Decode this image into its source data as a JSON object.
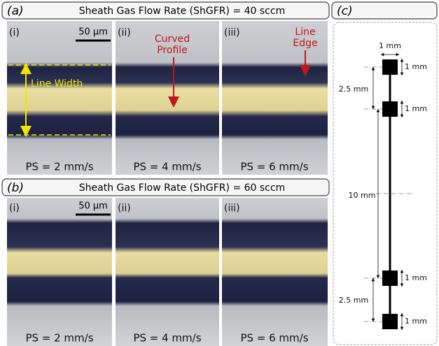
{
  "panel_a": {
    "label": "(a)",
    "title": "Sheath Gas Flow Rate (ShGFR) = 40 sccm",
    "scale_bar": "50 µm",
    "images": [
      {
        "label": "(i)",
        "caption": "PS = 2 mm/s"
      },
      {
        "label": "(ii)",
        "caption": "PS = 4 mm/s"
      },
      {
        "label": "(iii)",
        "caption": "PS = 6 mm/s"
      }
    ],
    "annotations": {
      "line_width": "Line Width",
      "curved_profile": [
        "Curved",
        "Profile"
      ],
      "line_edge": [
        "Line",
        "Edge"
      ]
    }
  },
  "panel_b": {
    "label": "(b)",
    "title": "Sheath Gas Flow Rate (ShGFR) = 60 sccm",
    "scale_bar": "50 µm",
    "images": [
      {
        "label": "(i)",
        "caption": "PS = 2 mm/s"
      },
      {
        "label": "(ii)",
        "caption": "PS = 4 mm/s"
      },
      {
        "label": "(iii)",
        "caption": "PS = 6 mm/s"
      }
    ]
  },
  "panel_c": {
    "label": "(c)",
    "dimensions": {
      "top_width": "1 mm",
      "pad_1": "1 mm",
      "gap_1": "2.5 mm",
      "pad_2": "1 mm",
      "line_length": "10 mm",
      "pad_3": "1 mm",
      "gap_2": "2.5 mm",
      "pad_4": "1 mm"
    }
  }
}
